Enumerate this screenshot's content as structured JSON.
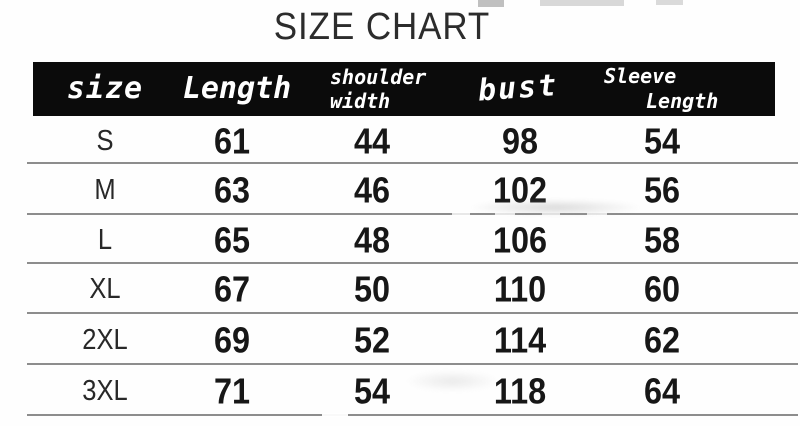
{
  "title": "SIZE CHART",
  "table": {
    "columns": [
      {
        "key": "size",
        "label": "size"
      },
      {
        "key": "length",
        "label": "Length"
      },
      {
        "key": "shoulder",
        "label": "shoulder width",
        "lines": [
          "shoulder",
          "width"
        ]
      },
      {
        "key": "bust",
        "label": "bust"
      },
      {
        "key": "sleeve",
        "label": "Sleeve Length",
        "lines": [
          "Sleeve",
          "Length"
        ]
      }
    ],
    "rows": [
      {
        "size": "S",
        "length": "61",
        "shoulder": "44",
        "bust": "98",
        "sleeve": "54"
      },
      {
        "size": "M",
        "length": "63",
        "shoulder": "46",
        "bust": "102",
        "sleeve": "56"
      },
      {
        "size": "L",
        "length": "65",
        "shoulder": "48",
        "bust": "106",
        "sleeve": "58"
      },
      {
        "size": "XL",
        "length": "67",
        "shoulder": "50",
        "bust": "110",
        "sleeve": "60"
      },
      {
        "size": "2XL",
        "length": "69",
        "shoulder": "52",
        "bust": "114",
        "sleeve": "62"
      },
      {
        "size": "3XL",
        "length": "71",
        "shoulder": "54",
        "bust": "118",
        "sleeve": "64"
      }
    ]
  },
  "chart_data": {
    "type": "table",
    "title": "SIZE CHART",
    "categories": [
      "S",
      "M",
      "L",
      "XL",
      "2XL",
      "3XL"
    ],
    "series": [
      {
        "name": "Length",
        "values": [
          61,
          63,
          65,
          67,
          69,
          71
        ]
      },
      {
        "name": "shoulder width",
        "values": [
          44,
          46,
          48,
          50,
          52,
          54
        ]
      },
      {
        "name": "bust",
        "values": [
          98,
          102,
          106,
          110,
          114,
          118
        ]
      },
      {
        "name": "Sleeve Length",
        "values": [
          54,
          56,
          58,
          60,
          62,
          64
        ]
      }
    ],
    "layout": {
      "header_position": "top",
      "grid": "horizontal-lines-only"
    }
  },
  "colors": {
    "header_bg": "#0b0b0b",
    "header_text": "#ffffff",
    "row_line": "#8d8d8d",
    "value_text": "#171717",
    "title_text": "#2c2c2c",
    "background": "#fefefe"
  }
}
